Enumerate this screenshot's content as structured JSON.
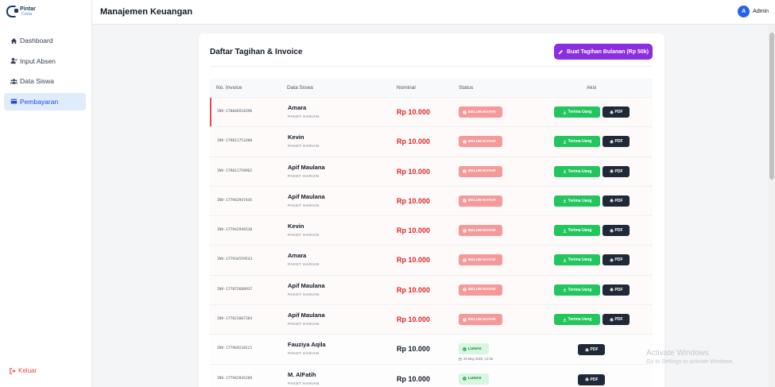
{
  "app": {
    "logo_line1": "Pintar",
    "logo_line2": "Ceria"
  },
  "sidebar": {
    "items": [
      {
        "label": "Dashboard",
        "icon": "home-icon",
        "active": false
      },
      {
        "label": "Input Absen",
        "icon": "user-check-icon",
        "active": false
      },
      {
        "label": "Data Siswa",
        "icon": "users-icon",
        "active": false
      },
      {
        "label": "Pembayaran",
        "icon": "wallet-icon",
        "active": true
      }
    ],
    "logout_label": "Keluar"
  },
  "header": {
    "title": "Manajemen Keuangan",
    "user_initial": "A",
    "user_name": "Admin"
  },
  "main": {
    "title": "Daftar Tagihan & Invoice",
    "create_button": "Buat Tagihan Bulanan (Rp 50k)",
    "columns": [
      "No. Invoice",
      "Data Siswa",
      "Nominal",
      "Status",
      "Aksi"
    ],
    "pay_label": "Terima Uang",
    "pdf_label": "PDF",
    "rows": [
      {
        "invoice": "INV-178046910396",
        "name": "Amara",
        "package": "PAKET HARIAN",
        "amount": "Rp 10.000",
        "status": "BELUM BAYAR",
        "paid": false
      },
      {
        "invoice": "INV-179011752480",
        "name": "Kevin",
        "package": "PAKET HARIAN",
        "amount": "Rp 10.000",
        "status": "BELUM BAYAR",
        "paid": false
      },
      {
        "invoice": "INV-179011750962",
        "name": "Apif Maulana",
        "package": "PAKET HARIAN",
        "amount": "Rp 10.000",
        "status": "BELUM BAYAR",
        "paid": false
      },
      {
        "invoice": "INV-177942947445",
        "name": "Apif Maulana",
        "package": "PAKET HARIAN",
        "amount": "Rp 10.000",
        "status": "BELUM BAYAR",
        "paid": false
      },
      {
        "invoice": "INV-177942946530",
        "name": "Kevin",
        "package": "PAKET HARIAN",
        "amount": "Rp 10.000",
        "status": "BELUM BAYAR",
        "paid": false
      },
      {
        "invoice": "INV-177934559543",
        "name": "Amara",
        "package": "PAKET HARIAN",
        "amount": "Rp 10.000",
        "status": "BELUM BAYAR",
        "paid": false
      },
      {
        "invoice": "INV-177872688937",
        "name": "Apif Maulana",
        "package": "PAKET HARIAN",
        "amount": "Rp 10.000",
        "status": "BELUM BAYAR",
        "paid": false
      },
      {
        "invoice": "INV-177821887384",
        "name": "Apif Maulana",
        "package": "PAKET HARIAN",
        "amount": "Rp 10.000",
        "status": "BELUM BAYAR",
        "paid": false
      },
      {
        "invoice": "INV-177969238121",
        "name": "Fauziya Aqila",
        "package": "PAKET HARIAN",
        "amount": "Rp 10.000",
        "status": "LUNAS",
        "paid": true,
        "date": "25 May 2026, 14:36"
      },
      {
        "invoice": "INV-177942945289",
        "name": "M. AlFatih",
        "package": "PAKET HARIAN",
        "amount": "Rp 10.000",
        "status": "LUNAS",
        "paid": true,
        "date": ""
      }
    ]
  },
  "watermark": {
    "line1": "Activate Windows",
    "line2": "Go to Settings to activate Windows."
  },
  "colors": {
    "accent": "#2563eb",
    "create_button": "#8b2de0",
    "unpaid_badge": "#f49a9a",
    "paid_badge": "#d7f5df",
    "pay_button": "#22c55e",
    "pdf_button": "#1f2937",
    "amount_unpaid": "#dc2626"
  }
}
